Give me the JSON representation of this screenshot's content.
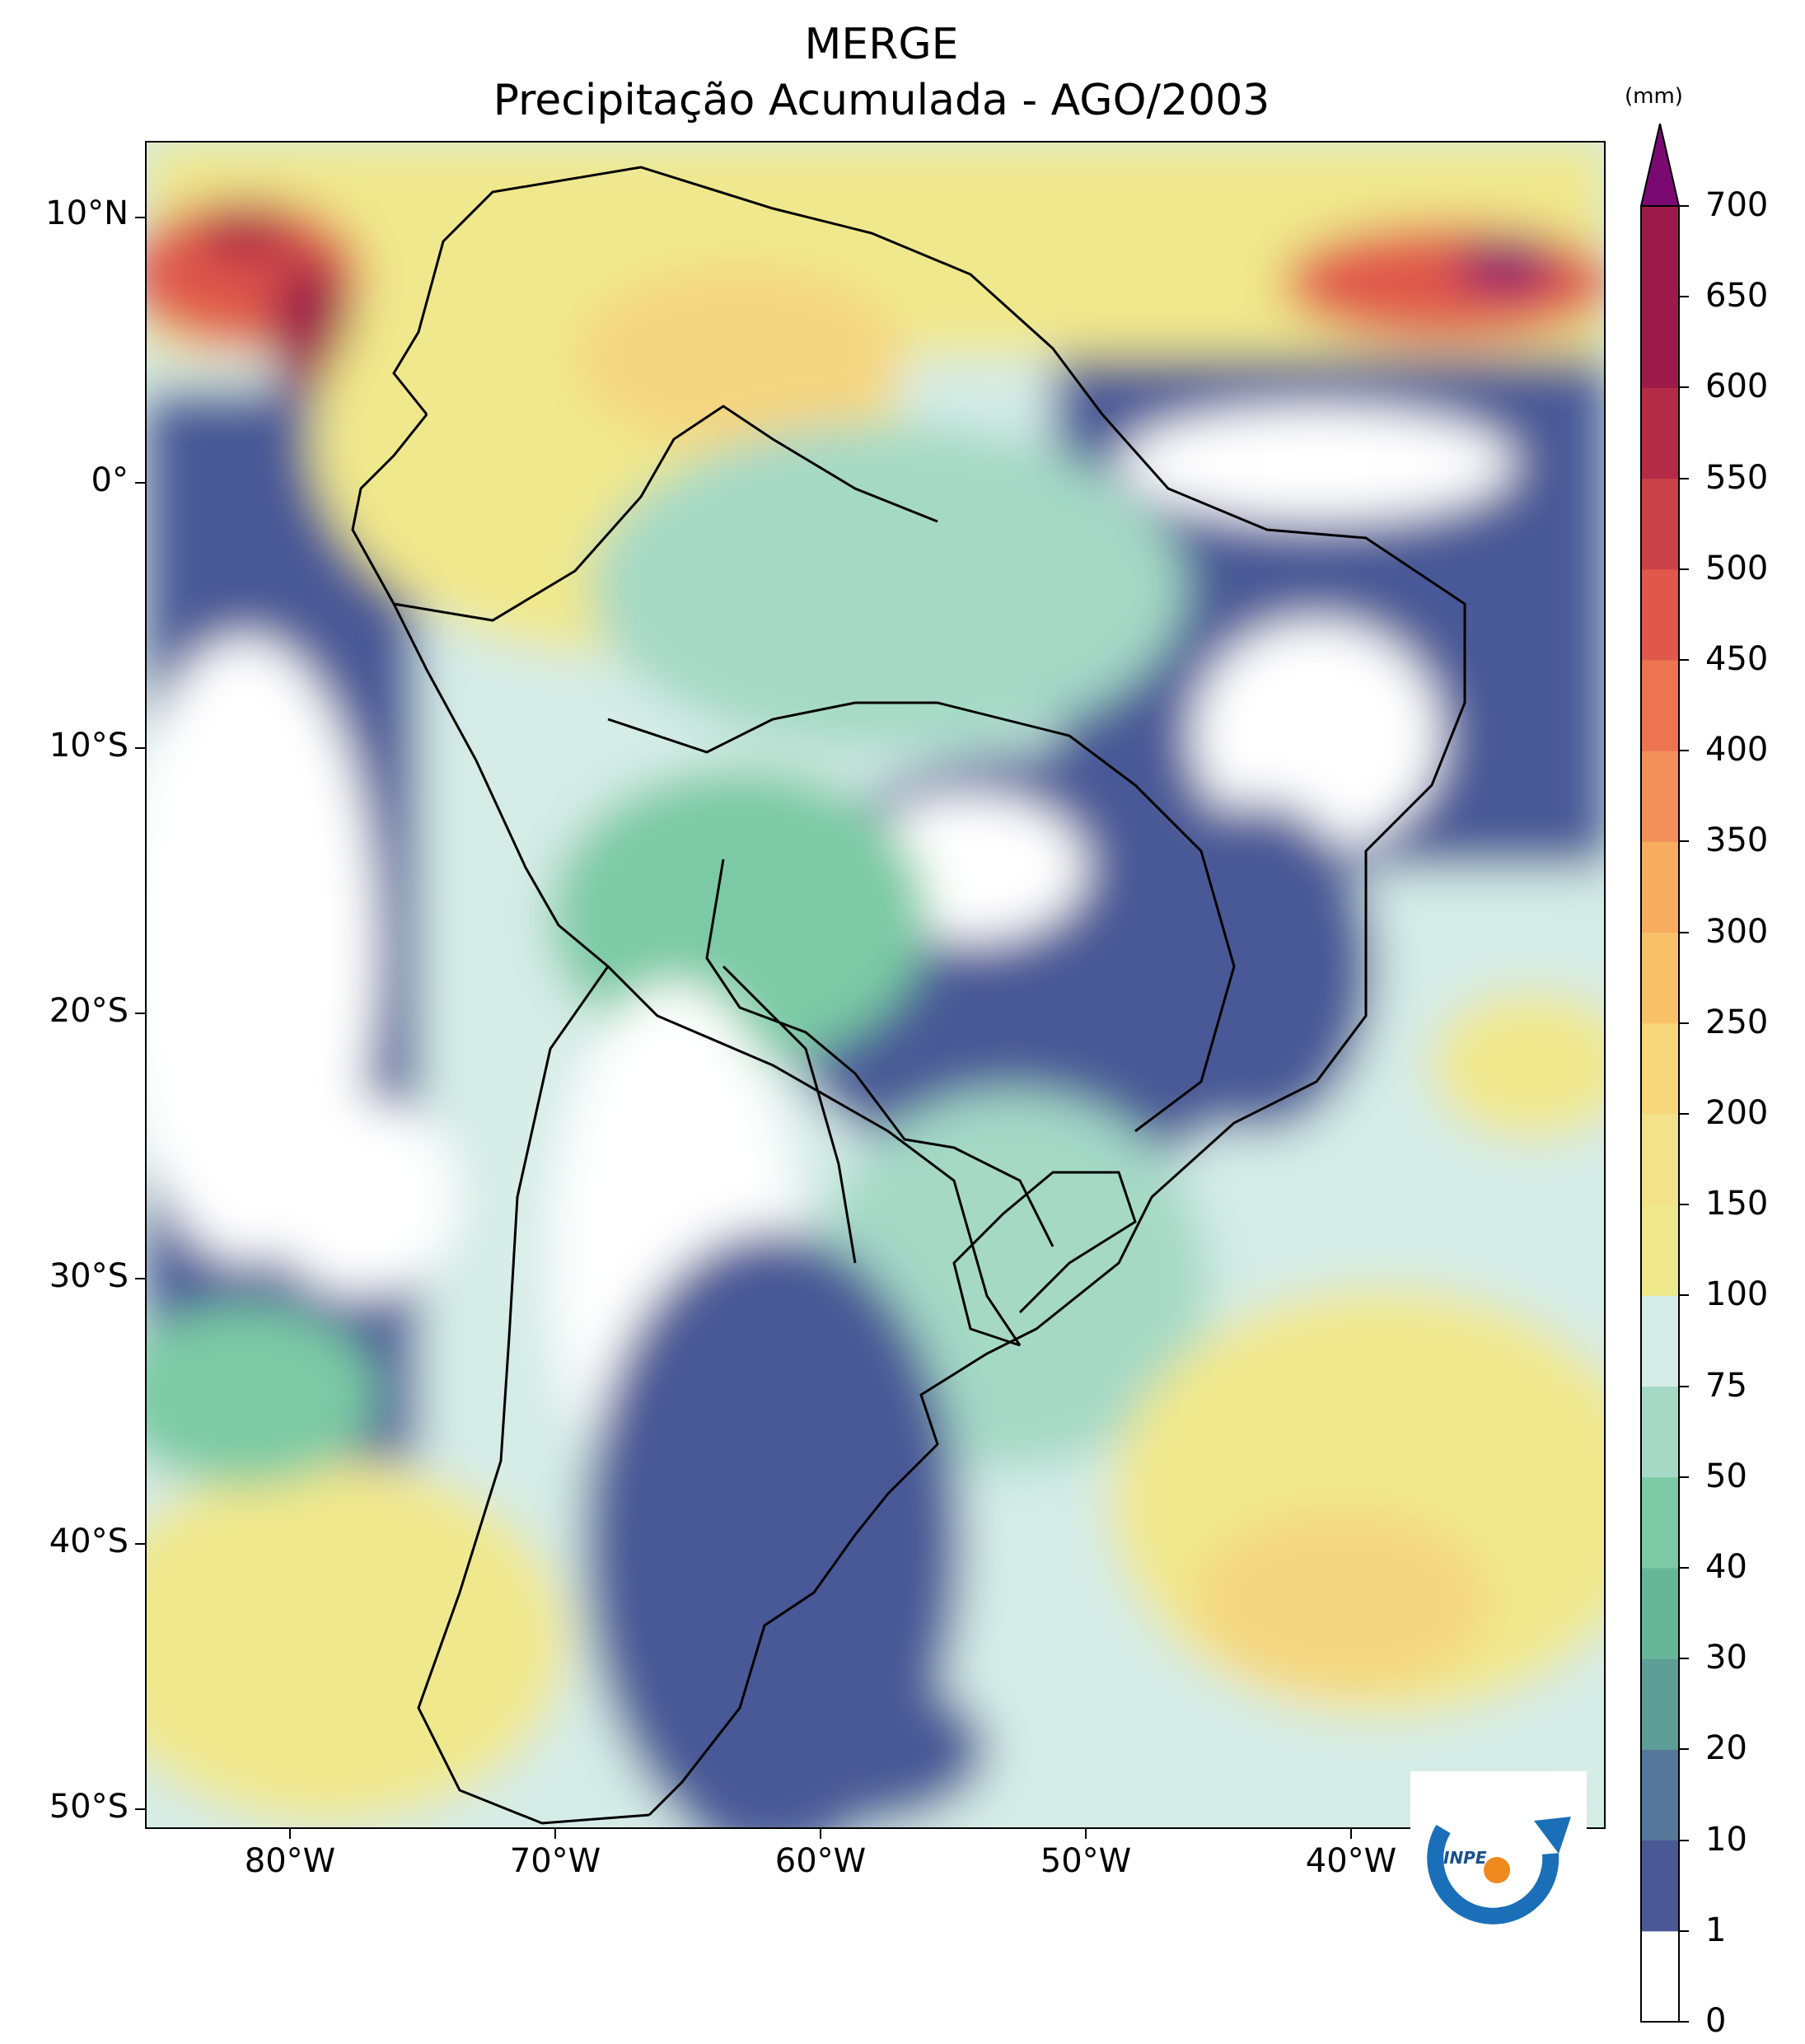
{
  "title": "MERGE",
  "subtitle": "Precipitação Acumulada - AGO/2003",
  "unit": "(mm)",
  "lat_labels": [
    "10°N",
    "0°",
    "10°S",
    "20°S",
    "30°S",
    "40°S",
    "50°S"
  ],
  "lon_labels": [
    "80°W",
    "70°W",
    "60°W",
    "50°W",
    "40°W"
  ],
  "colorbar": {
    "levels": [
      "0",
      "1",
      "10",
      "20",
      "30",
      "40",
      "50",
      "75",
      "100",
      "150",
      "200",
      "250",
      "300",
      "350",
      "400",
      "450",
      "500",
      "550",
      "600",
      "650",
      "700"
    ],
    "colors": [
      "#ffffff",
      "#4a5896",
      "#55779a",
      "#5e9e96",
      "#66b79a",
      "#7bcaa5",
      "#a5d9c6",
      "#d5ece7",
      "#ede98a",
      "#f3e28a",
      "#f8d67a",
      "#f9c26a",
      "#f8ad5e",
      "#f3905a",
      "#ec7450",
      "#e0584c",
      "#cc4249",
      "#b32b47",
      "#9b1a4a"
    ],
    "extend_color": "#7a0a72"
  },
  "logo": {
    "text": "INPE"
  }
}
